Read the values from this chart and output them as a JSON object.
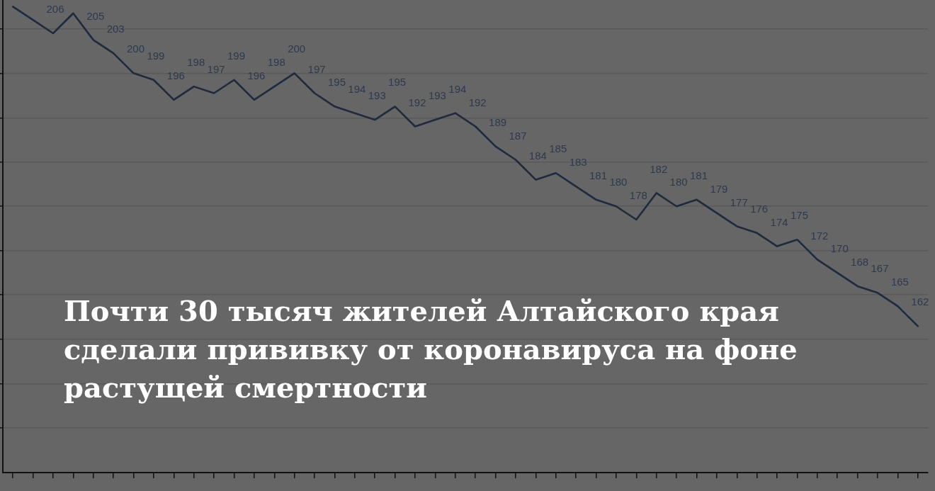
{
  "chart_data": {
    "type": "line",
    "title": "Почти 30 тысяч жителей Алтайского края сделали прививку от коронавируса на фоне растущей смертности",
    "categories": [
      null,
      null,
      null,
      null,
      null,
      null,
      null,
      null,
      null,
      null,
      null,
      null,
      null,
      null,
      null,
      null,
      null,
      null,
      null,
      null,
      null,
      null,
      null,
      null,
      null,
      null,
      null,
      null,
      null,
      null,
      null,
      null,
      null,
      null,
      null,
      null,
      null,
      null,
      null,
      null,
      null,
      null,
      null,
      null,
      null,
      null
    ],
    "values": [
      210,
      208,
      206,
      209,
      205,
      203,
      200,
      199,
      196,
      198,
      197,
      199,
      196,
      198,
      200,
      197,
      195,
      194,
      193,
      195,
      192,
      193,
      194,
      192,
      189,
      187,
      184,
      185,
      183,
      181,
      180,
      178,
      182,
      180,
      181,
      179,
      177,
      176,
      174,
      175,
      172,
      170,
      168,
      167,
      165,
      162
    ],
    "value_labels": [
      null,
      null,
      "206",
      null,
      "205",
      "203",
      "200",
      "199",
      "196",
      "198",
      "197",
      "199",
      "196",
      "198",
      "200",
      "197",
      "195",
      "194",
      "193",
      "195",
      "192",
      "193",
      "194",
      "192",
      "189",
      "187",
      "184",
      "185",
      "183",
      "181",
      "180",
      "178",
      "182",
      "180",
      "181",
      "179",
      "177",
      "176",
      "174",
      "175",
      "172",
      "170",
      "168",
      "167",
      "165",
      "162"
    ],
    "color": "#1f2b3d",
    "ylim": [
      140,
      211
    ],
    "yticks": [
      {
        "value": 146.7,
        "label": null
      },
      {
        "value": 153.3,
        "label": null
      },
      {
        "value": 160,
        "label": null
      },
      {
        "value": 166.7,
        "label": null
      },
      {
        "value": 173.3,
        "label": null
      },
      {
        "value": 180,
        "label": null
      },
      {
        "value": 186.7,
        "label": null
      },
      {
        "value": 193.3,
        "label": null
      },
      {
        "value": 200,
        "label": null
      },
      {
        "value": 206.7,
        "label": null
      }
    ],
    "grid": "y",
    "tick_labels": false
  }
}
